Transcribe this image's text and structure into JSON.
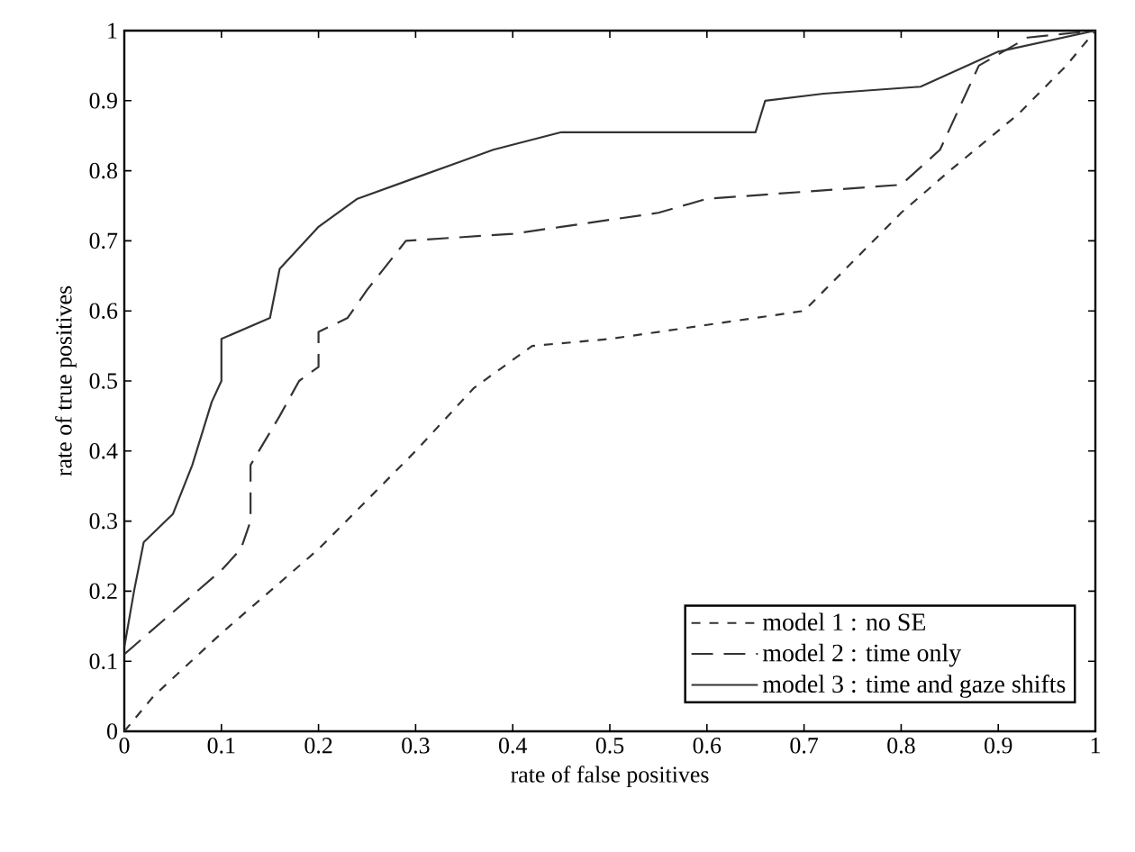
{
  "chart_data": {
    "type": "line",
    "xlabel": "rate of false positives",
    "ylabel": "rate of true positives",
    "xlim": [
      0,
      1
    ],
    "ylim": [
      0,
      1
    ],
    "xticks": [
      0,
      0.1,
      0.2,
      0.3,
      0.4,
      0.5,
      0.6,
      0.7,
      0.8,
      0.9,
      1
    ],
    "yticks": [
      0,
      0.1,
      0.2,
      0.3,
      0.4,
      0.5,
      0.6,
      0.7,
      0.8,
      0.9,
      1
    ],
    "grid": false,
    "legend": "bottom right",
    "series": [
      {
        "name": "model 1 : no SE",
        "color": "#333333",
        "line_style": "dashed",
        "x": [
          0,
          0.03,
          0.1,
          0.2,
          0.3,
          0.36,
          0.42,
          0.5,
          0.6,
          0.7,
          0.75,
          0.8,
          0.85,
          0.92,
          0.97,
          1
        ],
        "values": [
          0,
          0.05,
          0.14,
          0.26,
          0.4,
          0.49,
          0.55,
          0.56,
          0.58,
          0.6,
          0.67,
          0.74,
          0.8,
          0.88,
          0.95,
          1
        ]
      },
      {
        "name": "model 2 : time only",
        "color": "#333333",
        "line_style": "dashed",
        "x": [
          0,
          0.05,
          0.1,
          0.12,
          0.13,
          0.13,
          0.16,
          0.18,
          0.2,
          0.2,
          0.23,
          0.25,
          0.29,
          0.4,
          0.45,
          0.55,
          0.6,
          0.7,
          0.8,
          0.84,
          0.88,
          0.93,
          1
        ],
        "values": [
          0.11,
          0.17,
          0.23,
          0.26,
          0.3,
          0.38,
          0.45,
          0.5,
          0.52,
          0.57,
          0.59,
          0.63,
          0.7,
          0.71,
          0.72,
          0.74,
          0.76,
          0.77,
          0.78,
          0.83,
          0.95,
          0.99,
          1
        ]
      },
      {
        "name": "model 3 : time and gaze shifts",
        "color": "#333333",
        "line_style": "solid",
        "x": [
          0,
          0.01,
          0.02,
          0.05,
          0.07,
          0.09,
          0.1,
          0.1,
          0.15,
          0.16,
          0.2,
          0.24,
          0.3,
          0.38,
          0.45,
          0.65,
          0.66,
          0.72,
          0.82,
          0.9,
          1
        ],
        "values": [
          0.12,
          0.2,
          0.27,
          0.31,
          0.38,
          0.47,
          0.5,
          0.56,
          0.59,
          0.66,
          0.72,
          0.76,
          0.79,
          0.83,
          0.855,
          0.855,
          0.9,
          0.91,
          0.92,
          0.97,
          1
        ]
      }
    ]
  }
}
